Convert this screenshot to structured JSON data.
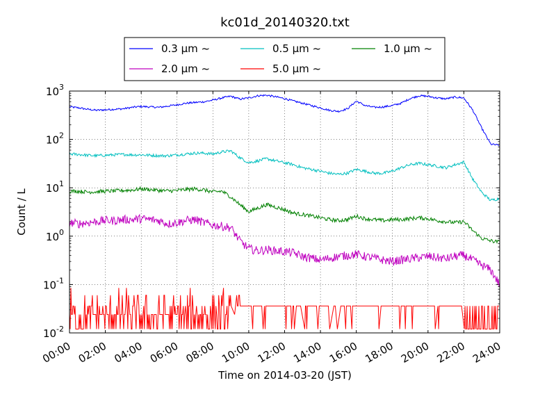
{
  "chart_data": {
    "type": "line",
    "title": "kc01d_20140320.txt",
    "xlabel": "Time on 2014-03-20 (JST)",
    "ylabel": "Count / L",
    "y_scale": "log",
    "ylim": [
      0.01,
      1000
    ],
    "xlim": [
      "00:00",
      "24:00"
    ],
    "grid": true,
    "legend_position": "top, above plot",
    "x_ticks": [
      "00:00",
      "02:00",
      "04:00",
      "06:00",
      "08:00",
      "10:00",
      "12:00",
      "14:00",
      "16:00",
      "18:00",
      "20:00",
      "22:00",
      "24:00"
    ],
    "y_ticks": [
      {
        "value": 0.01,
        "base": "10",
        "exp": "-2"
      },
      {
        "value": 0.1,
        "base": "10",
        "exp": "-1"
      },
      {
        "value": 1,
        "base": "10",
        "exp": "0"
      },
      {
        "value": 10,
        "base": "10",
        "exp": "1"
      },
      {
        "value": 100,
        "base": "10",
        "exp": "2"
      },
      {
        "value": 1000,
        "base": "10",
        "exp": "3"
      }
    ],
    "x_hours": [
      0,
      0.5,
      1,
      1.5,
      2,
      2.5,
      3,
      3.5,
      4,
      4.5,
      5,
      5.5,
      6,
      6.5,
      7,
      7.5,
      8,
      8.5,
      9,
      9.5,
      10,
      10.5,
      11,
      11.5,
      12,
      12.5,
      13,
      13.5,
      14,
      14.5,
      15,
      15.5,
      16,
      16.5,
      17,
      17.5,
      18,
      18.5,
      19,
      19.5,
      20,
      20.5,
      21,
      21.5,
      22,
      22.5,
      23,
      23.5,
      24
    ],
    "series": [
      {
        "name": "0.3 µm ~",
        "color": "#0000ff",
        "values": [
          470,
          450,
          420,
          400,
          410,
          420,
          430,
          460,
          480,
          470,
          460,
          490,
          520,
          560,
          580,
          600,
          650,
          720,
          780,
          680,
          720,
          800,
          820,
          760,
          700,
          620,
          560,
          500,
          450,
          400,
          380,
          430,
          620,
          500,
          460,
          470,
          500,
          560,
          700,
          800,
          780,
          720,
          690,
          750,
          720,
          400,
          170,
          80,
          75
        ]
      },
      {
        "name": "0.5 µm ~",
        "color": "#00bfbf",
        "values": [
          50,
          49,
          47,
          46,
          47,
          48,
          49,
          48,
          48,
          47,
          46,
          46,
          48,
          50,
          52,
          52,
          50,
          55,
          58,
          42,
          33,
          36,
          40,
          36,
          33,
          30,
          26,
          24,
          22,
          20,
          19,
          20,
          24,
          22,
          20,
          20,
          22,
          26,
          30,
          32,
          30,
          28,
          26,
          30,
          34,
          15,
          8,
          5.5,
          6
        ]
      },
      {
        "name": "1.0 µm ~",
        "color": "#008000",
        "values": [
          8.5,
          8.5,
          8.2,
          8.3,
          8.5,
          8.6,
          8.8,
          9,
          9.5,
          9.2,
          8.8,
          8.6,
          8.8,
          9.2,
          9.5,
          9,
          8.2,
          8.5,
          6.5,
          4.5,
          3.2,
          3.8,
          4.5,
          4,
          3.5,
          3,
          2.8,
          2.6,
          2.4,
          2.2,
          2.1,
          2.2,
          2.6,
          2.3,
          2.2,
          2.1,
          2.2,
          2.2,
          2.3,
          2.4,
          2.3,
          2.1,
          2,
          1.9,
          2,
          1.3,
          0.9,
          0.8,
          0.75
        ]
      },
      {
        "name": "2.0 µm ~",
        "color": "#bf00bf",
        "values": [
          1.9,
          1.8,
          1.9,
          2,
          2.1,
          2.1,
          2.2,
          2.2,
          2.3,
          2.2,
          2.1,
          1.8,
          1.9,
          2.1,
          2.2,
          1.9,
          1.7,
          1.6,
          1.5,
          0.8,
          0.55,
          0.5,
          0.52,
          0.5,
          0.48,
          0.45,
          0.38,
          0.35,
          0.32,
          0.35,
          0.38,
          0.4,
          0.42,
          0.38,
          0.35,
          0.32,
          0.3,
          0.32,
          0.34,
          0.36,
          0.38,
          0.36,
          0.34,
          0.38,
          0.4,
          0.32,
          0.25,
          0.2,
          0.1
        ]
      },
      {
        "name": "5.0 µm ~",
        "color": "#ff0000",
        "values": [
          0.02,
          0.03,
          0.05,
          0.02,
          0.04,
          0.03,
          0.05,
          0.02,
          0.06,
          0.03,
          0.05,
          0.02,
          0.04,
          0.02,
          0.03,
          0.02,
          0.03,
          0.02,
          0.03,
          0.02,
          0.03,
          0.05,
          0.02,
          0.03,
          0.04,
          0.02,
          0.03,
          0.05,
          0.02,
          0.03,
          0.04,
          0.05,
          0.03,
          0.02,
          0.02,
          0.03,
          0.02,
          0.02,
          0.03,
          0.02,
          0.03,
          0.02,
          0.03,
          0.02,
          0.03,
          0.02,
          0.02,
          0.03,
          0.02
        ]
      }
    ]
  }
}
